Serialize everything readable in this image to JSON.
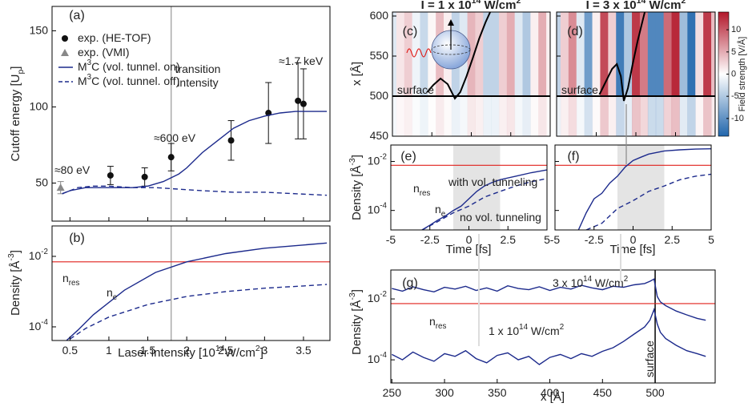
{
  "chart_data": [
    {
      "type": "errorbar",
      "panel_label": "(a)",
      "ylabel": "Cutoff energy [U_{p}]",
      "xlim": [
        0.27,
        3.84
      ],
      "ylim": [
        25,
        166
      ],
      "xticks": [
        0.5,
        1,
        1.5,
        2,
        2.5,
        3,
        3.5
      ],
      "yticks": [
        50,
        100,
        150
      ],
      "vlines": [
        {
          "value": 1.8,
          "color": "#aaaaaa"
        }
      ],
      "legend": "upper left",
      "series": [
        {
          "name": "exp. (HE-TOF)",
          "color": "#111111",
          "marker": "circle",
          "x": [
            1.02,
            1.46,
            1.8,
            2.57,
            3.05,
            3.43,
            3.5
          ],
          "values": [
            55,
            54,
            67,
            78,
            96,
            104,
            102
          ],
          "errors": [
            6,
            6,
            9,
            13,
            20,
            25,
            23
          ]
        },
        {
          "name": "exp. (VMI)",
          "color": "#888888",
          "marker": "triangle",
          "x": [
            0.38
          ],
          "values": [
            47
          ],
          "errors": [
            4
          ]
        },
        {
          "name": "M^{3}C (vol. tunnel. on)",
          "color": "#1c2a8c",
          "dash": false,
          "x": [
            0.4,
            0.5,
            0.7,
            1.0,
            1.3,
            1.5,
            1.7,
            1.9,
            2.0,
            2.2,
            2.4,
            2.6,
            2.8,
            3.0,
            3.2,
            3.4,
            3.6,
            3.8
          ],
          "values": [
            43,
            45,
            47,
            47,
            47,
            48,
            51,
            56,
            60,
            70,
            78,
            86,
            91,
            94,
            96,
            97,
            97,
            97
          ]
        },
        {
          "name": "M^{3}C (vol. tunnel. off)",
          "color": "#1c2a8c",
          "dash": true,
          "x": [
            0.4,
            0.6,
            0.8,
            1.0,
            1.3,
            1.6,
            1.9,
            2.2,
            2.6,
            3.0,
            3.4,
            3.8
          ],
          "values": [
            43,
            47,
            48,
            48,
            47,
            47,
            46,
            45,
            44,
            44,
            43,
            42
          ]
        }
      ],
      "annotations": [
        {
          "text": "transition",
          "color": "#999999"
        },
        {
          "text": "intensity",
          "color": "#999999"
        },
        {
          "text": "≈80 eV",
          "color": "#888888"
        },
        {
          "text": "≈600 eV",
          "color": "#555555"
        },
        {
          "text": "≈1.7 keV",
          "color": "#555555"
        }
      ]
    },
    {
      "type": "line",
      "panel_label": "(b)",
      "xlabel": "Laser intensity [10^{14}W/cm^{2}]",
      "ylabel": "Density [Å^{-3}]",
      "log_y": true,
      "xlim": [
        0.27,
        3.84
      ],
      "ylim": [
        4.1e-05,
        0.073
      ],
      "xticks": [
        0.5,
        1,
        1.5,
        2,
        2.5,
        3,
        3.5
      ],
      "yticks": [
        {
          "value": 0.0001,
          "label": "10^{-4}"
        },
        {
          "value": 0.01,
          "label": "10^{-2}"
        }
      ],
      "vlines": [
        {
          "value": 1.8,
          "color": "#aaaaaa"
        }
      ],
      "hlines": [
        {
          "value": 0.007,
          "color": "#e0201b"
        }
      ],
      "series": [
        {
          "color": "#1c2a8c",
          "dash": false,
          "x": [
            0.45,
            0.6,
            0.8,
            1.2,
            1.6,
            2.0,
            2.5,
            3.0,
            3.5,
            3.8
          ],
          "values": [
            4e-05,
            8e-05,
            0.00022,
            0.0011,
            0.0035,
            0.007,
            0.012,
            0.017,
            0.021,
            0.024
          ]
        },
        {
          "color": "#1c2a8c",
          "dash": true,
          "x": [
            0.5,
            0.7,
            1.0,
            1.5,
            2.0,
            2.5,
            3.0,
            3.5,
            3.8
          ],
          "values": [
            4.5e-05,
            9e-05,
            0.00019,
            0.00043,
            0.00073,
            0.001,
            0.00125,
            0.00145,
            0.0016
          ]
        }
      ],
      "annotations": [
        {
          "text": "n_{res}",
          "color": "#e0201b"
        },
        {
          "text": "n_{e}",
          "color": "#1c2a8c"
        }
      ]
    },
    {
      "type": "heatmap",
      "panel_label": "(c)",
      "title": "I = 1 x 10^{14} W/cm^{2}",
      "ylabel": "x [Å]",
      "xlim": [
        -5,
        5
      ],
      "ylim": [
        450,
        605
      ],
      "xticks": [
        -5,
        -2.5,
        0,
        2.5,
        5
      ],
      "yticks": [
        450,
        500,
        550,
        600
      ],
      "clim": [
        -14,
        14
      ],
      "field": {
        "x": [
          -5,
          -4.5,
          -4,
          -3.5,
          -3,
          -2.5,
          -2,
          -1.5,
          -1,
          -0.5,
          0,
          0.5,
          1,
          1.5,
          2,
          2.5,
          3,
          3.5,
          4,
          4.5,
          5
        ],
        "values": [
          -2,
          1.5,
          3,
          -1,
          -3.5,
          0.5,
          4,
          1,
          -4,
          -2,
          4.5,
          3,
          -4,
          -4,
          3,
          5,
          -2,
          -5,
          1,
          5,
          1
        ]
      },
      "hlines": [
        {
          "value": 500,
          "color": "#000000"
        }
      ],
      "series": [
        {
          "color": "#000000",
          "x": [
            -2.8,
            -2.4,
            -1.95,
            -1.5,
            -1.04,
            -0.7,
            -0.3,
            0.1,
            0.5,
            0.9,
            1.2
          ],
          "values": [
            505,
            514,
            522,
            515,
            497,
            505,
            525,
            548,
            572,
            592,
            605
          ]
        }
      ],
      "annotations": [
        {
          "text": "surface",
          "color": "#000000"
        }
      ]
    },
    {
      "type": "heatmap",
      "panel_label": "(d)",
      "title": "I = 3 x 10^{14} W/cm^{2}",
      "xlim": [
        -5,
        5
      ],
      "ylim": [
        450,
        605
      ],
      "xticks": [
        -5,
        -2.5,
        0,
        2.5,
        5
      ],
      "yticks": [
        450,
        500,
        550,
        600
      ],
      "clim": [
        -14,
        14
      ],
      "clabel": "Field strength [V/Å]",
      "cticks": [
        -10,
        -5,
        0,
        5,
        10
      ],
      "field": {
        "x": [
          -5,
          -4.5,
          -4,
          -3.5,
          -3,
          -2.5,
          -2,
          -1.5,
          -1,
          -0.5,
          0,
          0.5,
          1,
          1.5,
          2,
          2.5,
          3,
          3.5,
          4,
          4.5,
          5
        ],
        "values": [
          -4,
          3,
          7,
          -2,
          -9,
          1,
          11,
          3,
          -12,
          -5,
          12,
          8,
          -11,
          -11,
          9,
          13,
          -6,
          -13,
          2,
          12,
          4
        ]
      },
      "hlines": [
        {
          "value": 500,
          "color": "#000000"
        }
      ],
      "series": [
        {
          "color": "#000000",
          "x": [
            -2.3,
            -1.9,
            -1.5,
            -1.2,
            -0.95,
            -0.76,
            -0.5,
            -0.2,
            0.1,
            0.35,
            0.56
          ],
          "values": [
            502,
            518,
            534,
            540,
            525,
            494,
            510,
            540,
            568,
            588,
            605
          ]
        }
      ],
      "annotations": [
        {
          "text": "surface",
          "color": "#000000"
        }
      ]
    },
    {
      "type": "line",
      "panel_label": "(e)",
      "xlabel": "Time [fs]",
      "ylabel": "Density [Å^{-3}]",
      "log_y": true,
      "xlim": [
        -5,
        5
      ],
      "ylim": [
        1.6e-05,
        0.047
      ],
      "xticks": [
        -5,
        -2.5,
        0,
        2.5,
        5
      ],
      "yticks": [
        {
          "value": 0.0001,
          "label": "10^{-4}"
        },
        {
          "value": 0.01,
          "label": "10^{-2}"
        }
      ],
      "shade": [
        -1,
        2
      ],
      "hlines": [
        {
          "value": 0.007,
          "color": "#e0201b"
        }
      ],
      "series": [
        {
          "color": "#1c2a8c",
          "dash": false,
          "x": [
            -3,
            -2.5,
            -2,
            -1.5,
            -1,
            -0.5,
            0,
            0.5,
            1,
            1.5,
            2,
            3,
            4,
            5
          ],
          "values": [
            1.6e-05,
            2.5e-05,
            4e-05,
            6e-05,
            0.0001,
            0.00015,
            0.0003,
            0.0006,
            0.001,
            0.0014,
            0.0018,
            0.0025,
            0.0035,
            0.0045
          ]
        },
        {
          "color": "#1c2a8c",
          "dash": true,
          "x": [
            -3,
            -2,
            -1,
            0,
            1,
            2,
            3,
            4,
            5
          ],
          "values": [
            1.6e-05,
            3.5e-05,
            8e-05,
            0.00015,
            0.00035,
            0.0006,
            0.001,
            0.0015,
            0.002
          ]
        }
      ],
      "annotations": [
        {
          "text": "with vol. tunneling",
          "color": "#111111"
        },
        {
          "text": "no vol. tunneling",
          "color": "#111111"
        },
        {
          "text": "n_{res}",
          "color": "#e0201b"
        },
        {
          "text": "n_{e}",
          "color": "#1c2a8c"
        }
      ]
    },
    {
      "type": "line",
      "panel_label": "(f)",
      "xlabel": "Time [fs]",
      "log_y": true,
      "xlim": [
        -5,
        5
      ],
      "ylim": [
        1.6e-05,
        0.047
      ],
      "xticks": [
        -5,
        -2.5,
        0,
        2.5,
        5
      ],
      "yticks": [
        {
          "value": 0.0001,
          "label": "10^{-4}"
        },
        {
          "value": 0.01,
          "label": "10^{-2}"
        }
      ],
      "shade": [
        -1,
        2
      ],
      "hlines": [
        {
          "value": 0.007,
          "color": "#e0201b"
        }
      ],
      "series": [
        {
          "color": "#1c2a8c",
          "dash": false,
          "x": [
            -3.5,
            -3,
            -2.5,
            -2,
            -1.5,
            -1,
            -0.5,
            0,
            0.5,
            1,
            2,
            3,
            4,
            5
          ],
          "values": [
            1.6e-05,
            8e-05,
            0.0003,
            0.0005,
            0.0013,
            0.0025,
            0.006,
            0.011,
            0.015,
            0.02,
            0.027,
            0.03,
            0.032,
            0.033
          ]
        },
        {
          "color": "#1c2a8c",
          "dash": true,
          "x": [
            -3,
            -2,
            -1.5,
            -1,
            0,
            1,
            2,
            3,
            4,
            5
          ],
          "values": [
            1.6e-05,
            3e-05,
            6e-05,
            0.00012,
            0.00025,
            0.0006,
            0.001,
            0.0018,
            0.0025,
            0.003
          ]
        }
      ]
    },
    {
      "type": "line",
      "panel_label": "(g)",
      "xlabel": "x [Å]",
      "ylabel": "Density [Å^{-3}]",
      "log_y": true,
      "xlim": [
        249,
        557
      ],
      "ylim": [
        1.74e-05,
        0.089
      ],
      "xticks": [
        250,
        300,
        350,
        400,
        450,
        500
      ],
      "yticks": [
        {
          "value": 0.0001,
          "label": "10^{-4}"
        },
        {
          "value": 0.01,
          "label": "10^{-2}"
        }
      ],
      "vlines": [
        {
          "value": 500,
          "color": "#000000"
        }
      ],
      "hlines": [
        {
          "value": 0.007,
          "color": "#e0201b"
        }
      ],
      "series": [
        {
          "color": "#1c2a8c",
          "dash": false,
          "x": [
            250,
            260,
            270,
            280,
            290,
            300,
            310,
            320,
            330,
            340,
            350,
            360,
            370,
            380,
            390,
            400,
            410,
            420,
            430,
            440,
            450,
            460,
            470,
            480,
            490,
            495,
            499,
            502,
            505,
            510,
            520,
            530,
            540,
            548
          ],
          "values": [
            0.022,
            0.018,
            0.025,
            0.02,
            0.017,
            0.024,
            0.021,
            0.026,
            0.019,
            0.023,
            0.018,
            0.027,
            0.022,
            0.02,
            0.025,
            0.019,
            0.024,
            0.021,
            0.028,
            0.023,
            0.02,
            0.026,
            0.024,
            0.029,
            0.032,
            0.038,
            0.045,
            0.012,
            0.008,
            0.006,
            0.004,
            0.003,
            0.0023,
            0.002
          ]
        },
        {
          "color": "#1c2a8c",
          "dash": false,
          "x": [
            250,
            260,
            270,
            280,
            290,
            300,
            310,
            320,
            330,
            340,
            350,
            360,
            370,
            380,
            390,
            400,
            410,
            420,
            430,
            440,
            450,
            460,
            470,
            480,
            490,
            495,
            499,
            502,
            505,
            510,
            520,
            530,
            540,
            548
          ],
          "values": [
            0.00015,
            0.0001,
            0.00018,
            0.00012,
            9e-05,
            0.00016,
            0.00013,
            0.0002,
            0.00011,
            8e-05,
            0.00014,
            0.00017,
            0.0001,
            0.00013,
            7e-05,
            0.00012,
            0.00015,
            0.00011,
            0.00016,
            0.00013,
            0.00019,
            0.00025,
            0.0004,
            0.0007,
            0.0012,
            0.002,
            0.0045,
            0.0015,
            0.0008,
            0.0005,
            0.0003,
            0.0002,
            0.00016,
            0.00013
          ]
        }
      ],
      "annotations": [
        {
          "text": "3 x 10^{14} W/cm^{2}",
          "color": "#1c2a8c"
        },
        {
          "text": "1 x 10^{14} W/cm^{2}",
          "color": "#1c2a8c"
        },
        {
          "text": "n_{res}",
          "color": "#e0201b"
        },
        {
          "text": "surface",
          "color": "#000000"
        }
      ]
    }
  ]
}
